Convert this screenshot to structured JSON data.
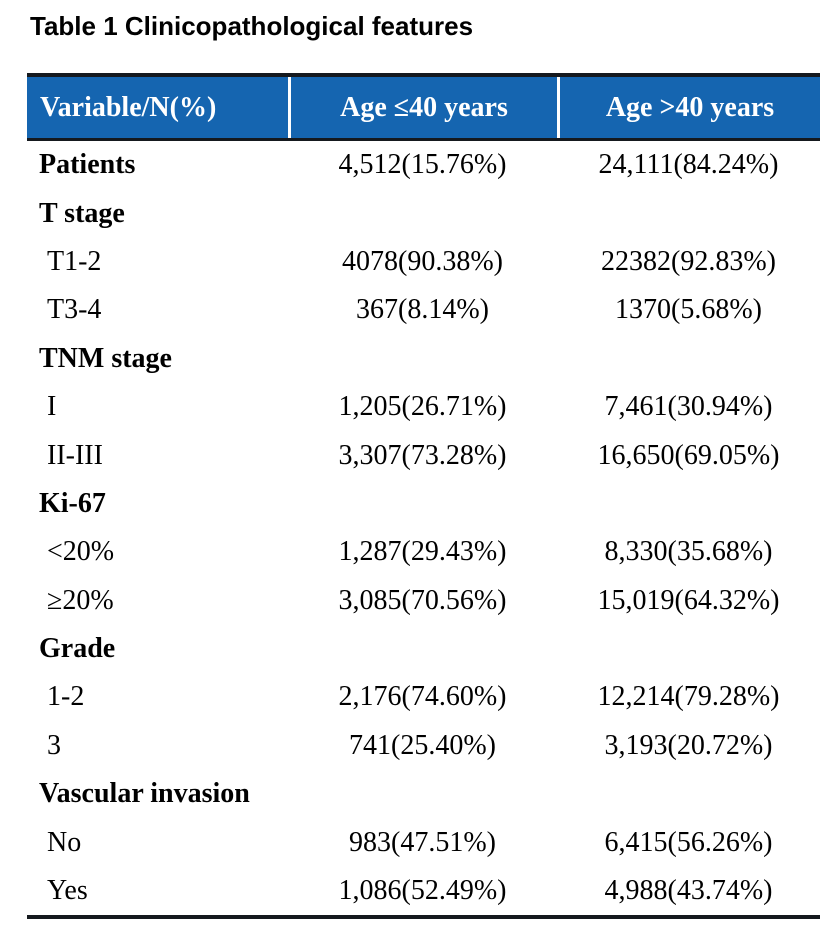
{
  "page": {
    "title": "Table 1 Clinicopathological features"
  },
  "colors": {
    "header_bg": "#1565B0",
    "header_text": "#FFFFFF",
    "border": "#15191E"
  },
  "table": {
    "header": {
      "col1": "Variable/N(%)",
      "col2": "Age ≤40 years",
      "col3": "Age >40 years"
    },
    "rows": [
      {
        "label": "Patients",
        "bold": true,
        "age_le40": "4,512(15.76%)",
        "age_gt40": "24,111(84.24%)"
      },
      {
        "label": "T stage",
        "bold": true,
        "age_le40": "",
        "age_gt40": ""
      },
      {
        "label": "T1-2",
        "bold": false,
        "age_le40": "4078(90.38%)",
        "age_gt40": "22382(92.83%)"
      },
      {
        "label": "T3-4",
        "bold": false,
        "age_le40": "367(8.14%)",
        "age_gt40": "1370(5.68%)"
      },
      {
        "label": "TNM stage",
        "bold": true,
        "age_le40": "",
        "age_gt40": ""
      },
      {
        "label": "I",
        "bold": false,
        "age_le40": "1,205(26.71%)",
        "age_gt40": "7,461(30.94%)"
      },
      {
        "label": "II-III",
        "bold": false,
        "age_le40": "3,307(73.28%)",
        "age_gt40": "16,650(69.05%)"
      },
      {
        "label": "Ki-67",
        "bold": true,
        "age_le40": "",
        "age_gt40": ""
      },
      {
        "label": "<20%",
        "bold": false,
        "age_le40": "1,287(29.43%)",
        "age_gt40": "8,330(35.68%)"
      },
      {
        "label": "≥20%",
        "bold": false,
        "age_le40": "3,085(70.56%)",
        "age_gt40": "15,019(64.32%)"
      },
      {
        "label": "Grade",
        "bold": true,
        "age_le40": "",
        "age_gt40": ""
      },
      {
        "label": "1-2",
        "bold": false,
        "age_le40": "2,176(74.60%)",
        "age_gt40": "12,214(79.28%)"
      },
      {
        "label": "3",
        "bold": false,
        "age_le40": "741(25.40%)",
        "age_gt40": "3,193(20.72%)"
      },
      {
        "label": "Vascular invasion",
        "bold": true,
        "age_le40": "",
        "age_gt40": ""
      },
      {
        "label": "No",
        "bold": false,
        "age_le40": "983(47.51%)",
        "age_gt40": "6,415(56.26%)"
      },
      {
        "label": "Yes",
        "bold": false,
        "age_le40": "1,086(52.49%)",
        "age_gt40": "4,988(43.74%)"
      }
    ]
  }
}
